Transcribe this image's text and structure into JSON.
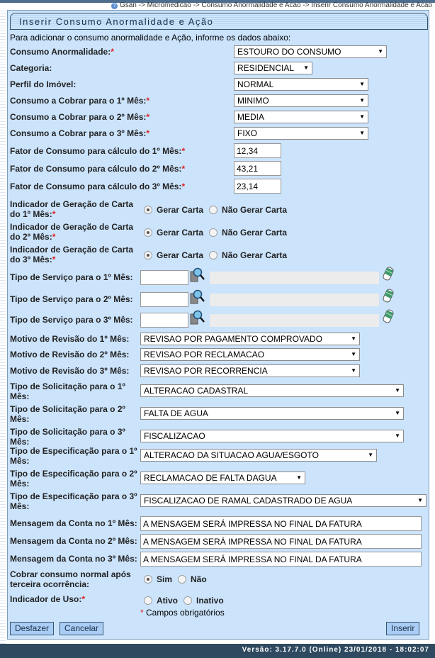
{
  "breadcrumb": "Gsan -> Micromedicao -> Consumo Anormalidade e Acao -> Inserir Consumo Anormalidade e Acao",
  "title": "Inserir Consumo Anormalidade e Ação",
  "instruction": "Para adicionar o consumo anormalidade e Ação, informe os dados abaixo:",
  "fields": {
    "anormalidade": {
      "label": "Consumo Anormalidade:",
      "value": "ESTOURO DO CONSUMO"
    },
    "categoria": {
      "label": "Categoria:",
      "value": "RESIDENCIAL"
    },
    "perfil": {
      "label": "Perfil do Imóvel:",
      "value": "NORMAL"
    },
    "cobrar1": {
      "label": "Consumo a Cobrar para o 1º Mês:",
      "value": "MINIMO"
    },
    "cobrar2": {
      "label": "Consumo a Cobrar para o 2º Mês:",
      "value": "MEDIA"
    },
    "cobrar3": {
      "label": "Consumo a Cobrar para o 3º Mês:",
      "value": "FIXO"
    },
    "fator1": {
      "label": "Fator de Consumo para cálculo do 1º Mês:",
      "value": "12,34"
    },
    "fator2": {
      "label": "Fator de Consumo para cálculo do 2º Mês:",
      "value": "43,21"
    },
    "fator3": {
      "label": "Fator de Consumo para cálculo do 3º Mês:",
      "value": "23,14"
    },
    "carta1": {
      "label1": "Indicador de Geração de Carta",
      "label2": "do 1º Mês:",
      "selected": "Gerar Carta"
    },
    "carta2": {
      "label1": "Indicador de Geração de Carta",
      "label2": "do 2º Mês:",
      "selected": "Gerar Carta"
    },
    "carta3": {
      "label1": "Indicador de Geração de Carta",
      "label2": "do 3º Mês:",
      "selected": "Gerar Carta"
    },
    "carta_options": [
      "Gerar Carta",
      "Não Gerar Carta"
    ],
    "servico1": {
      "label": "Tipo de Serviço para o 1º Mês:",
      "value": "",
      "description": ""
    },
    "servico2": {
      "label": "Tipo de Serviço para o 2º Mês:",
      "value": "",
      "description": ""
    },
    "servico3": {
      "label": "Tipo de Serviço para o 3º Mês:",
      "value": "",
      "description": ""
    },
    "motivo1": {
      "label": "Motivo de Revisão do 1º Mês:",
      "value": "REVISAO POR PAGAMENTO COMPROVADO"
    },
    "motivo2": {
      "label": "Motivo de Revisão do 2º Mês:",
      "value": "REVISAO POR RECLAMACAO"
    },
    "motivo3": {
      "label": "Motivo de Revisão do 3º Mês:",
      "value": "REVISAO POR RECORRENCIA"
    },
    "solic1": {
      "label1": "Tipo de Solicitação para o 1º",
      "label2": "Mês:",
      "value": "ALTERACAO CADASTRAL"
    },
    "solic2": {
      "label1": "Tipo de Solicitação para o 2º",
      "label2": "Mês:",
      "value": "FALTA DE AGUA"
    },
    "solic3": {
      "label1": "Tipo de Solicitação para o 3º",
      "label2": "Mês:",
      "value": "FISCALIZACAO"
    },
    "espec1": {
      "label1": "Tipo de Especificação para o 1º",
      "label2": "Mês:",
      "value": "ALTERACAO DA SITUACAO AGUA/ESGOTO"
    },
    "espec2": {
      "label1": "Tipo de Especificação para o 2º",
      "label2": "Mês:",
      "value": "RECLAMACAO DE FALTA DAGUA"
    },
    "espec3": {
      "label1": "Tipo de Especificação para o 3º",
      "label2": "Mês:",
      "value": "FISCALIZACAO DE RAMAL CADASTRADO DE AGUA"
    },
    "msg1": {
      "label": "Mensagem da Conta no 1º Mês:",
      "value": "A MENSAGEM SERÁ IMPRESSA NO FINAL DA FATURA"
    },
    "msg2": {
      "label": "Mensagem da Conta no 2º Mês:",
      "value": "A MENSAGEM SERÁ IMPRESSA NO FINAL DA FATURA"
    },
    "msg3": {
      "label": "Mensagem da Conta no 3º Mês:",
      "value": "A MENSAGEM SERÁ IMPRESSA NO FINAL DA FATURA"
    },
    "cobrar_normal": {
      "label1": "Cobrar consumo normal após",
      "label2": "terceira ocorrência:",
      "options": [
        "Sim",
        "Não"
      ],
      "selected": "Sim"
    },
    "uso": {
      "label": "Indicador de Uso:",
      "options": [
        "Ativo",
        "Inativo"
      ],
      "selected": null
    }
  },
  "required_star": "*",
  "required_note": "Campos obrigatórios",
  "buttons": {
    "undo": "Desfazer",
    "cancel": "Cancelar",
    "insert": "Inserir"
  },
  "footer": "Versão: 3.17.7.0 (Online) 23/01/2018 - 18:02:07"
}
